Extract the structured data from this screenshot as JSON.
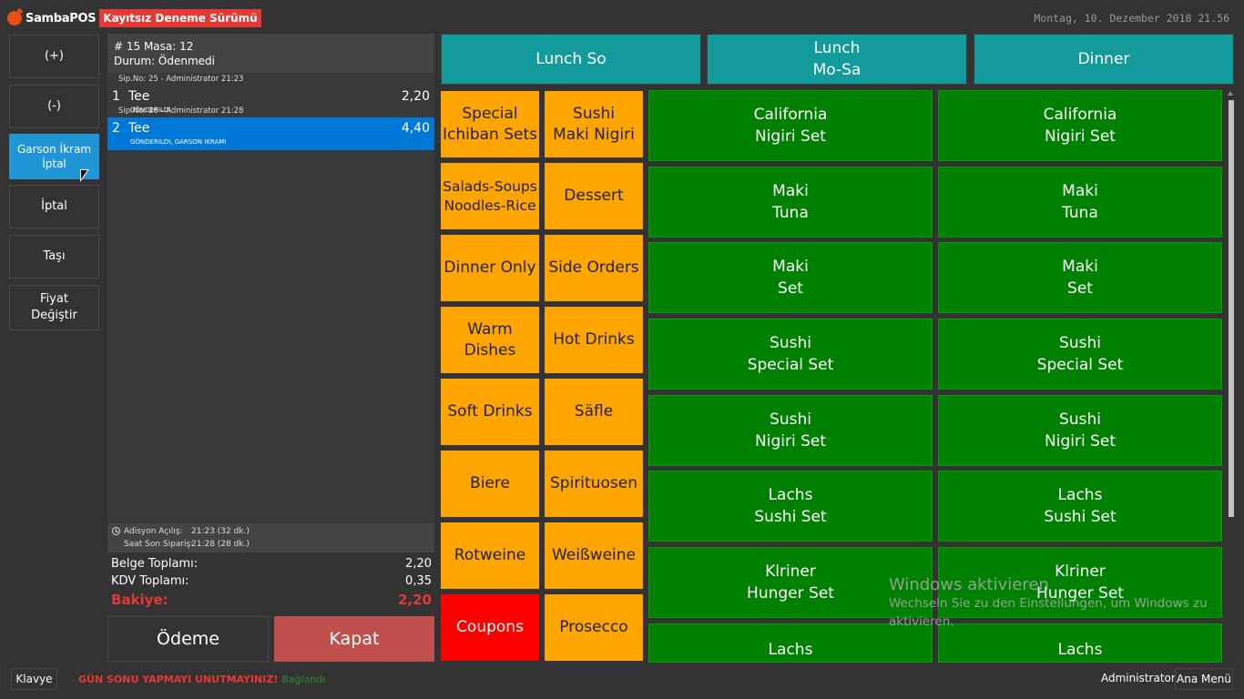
{
  "header": {
    "logo_text": "SambaPOS",
    "trial_badge": "Kayıtsız Deneme Sürümü",
    "datetime": "Montag, 10. Dezember 2018 21.56"
  },
  "actions": [
    "(+)",
    "(-)",
    "Garson İkram İptal",
    "İptal",
    "Taşı",
    "Fiyat\nDeğiştir"
  ],
  "ticket": {
    "number_line": "# 15 Masa: 12",
    "status_line": "Durum: Ödenmedi",
    "orders": [
      {
        "meta": "Sip.No: 25 - Administrator 21:23",
        "qty": "1",
        "name": "Tee",
        "price": "2,20",
        "state": "GÖNDERILDI"
      },
      {
        "meta": "Sip.No: 26 - Administrator 21:28",
        "qty": "2",
        "name": "Tee",
        "price": "4,40",
        "state": "GÖNDERILDI, GARSON IKRAMI"
      }
    ],
    "opened_label": "Adisyon Açılış:",
    "opened_value": "21:23 (32 dk.)",
    "last_order_label": "Saat Son Sipariş:",
    "last_order_value": "21:28 (28 dk.)",
    "totals": {
      "doc_label": "Belge Toplamı:",
      "doc_value": "2,20",
      "vat_label": "KDV Toplamı:",
      "vat_value": "0,35",
      "balance_label": "Bakiye:",
      "balance_value": "2,20"
    },
    "payment_label": "Ödeme",
    "close_label": "Kapat"
  },
  "menu_tabs": [
    "Lunch So",
    "Lunch\nMo-Sa",
    "Dinner"
  ],
  "categories": [
    "Special\nIchiban Sets",
    "Sushi\nMaki Nigiri",
    "Salads-Soups\nNoodles-Rice",
    "Dessert",
    "Dinner Only",
    "Side Orders",
    "Warm Dishes",
    "Hot Drinks",
    "Soft Drinks",
    "Säfle",
    "Biere",
    "Spirituosen",
    "Rotweine",
    "Weißweine",
    "Coupons",
    "Prosecco"
  ],
  "products": [
    "California\nNigiri Set",
    "California\nNigiri Set",
    "Maki\nTuna",
    "Maki\nTuna",
    "Maki\nSet",
    "Maki\nSet",
    "Sushi\nSpecial Set",
    "Sushi\nSpecial Set",
    "Sushi\nNigiri Set",
    "Sushi\nNigiri Set",
    "Lachs\nSushi Set",
    "Lachs\nSushi Set",
    "Klriner\nHunger Set",
    "Klriner\nHunger Set",
    "Lachs",
    "Lachs"
  ],
  "watermark": {
    "title": "Windows aktivieren",
    "subtitle": "Wechseln Sie zu den Einstellungen, um Windows zu aktivieren."
  },
  "footer": {
    "keyboard_label": "Klavye",
    "warning": "GÜN SONU YAPMAYI UNUTMAYINIZ!",
    "connection": "Bağlandı",
    "user": "Administrator",
    "main_menu_label": "Ana Menü"
  }
}
